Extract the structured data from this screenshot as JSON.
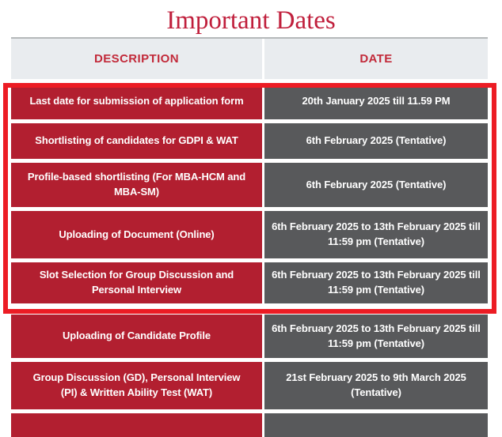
{
  "title": "Important Dates",
  "colors": {
    "title_red": "#c01f3c",
    "header_bg": "#e9ecef",
    "header_text": "#c22a3a",
    "description_cell_red": "#b21f30",
    "date_cell_gray": "#58595b",
    "cell_text": "#ffffff",
    "highlight_box_red": "#ec1c24"
  },
  "table": {
    "headers": [
      "DESCRIPTION",
      "DATE"
    ],
    "rows": [
      {
        "description": "Last date for submission of application form",
        "date": "20th January 2025 till 11.59 PM"
      },
      {
        "description": "Shortlisting of candidates for GDPI & WAT",
        "date": "6th February 2025 (Tentative)"
      },
      {
        "description": "Profile-based shortlisting (For MBA-HCM and MBA-SM)",
        "date": "6th February 2025 (Tentative)"
      },
      {
        "description": "Uploading of Document (Online)",
        "date": "6th February 2025 to 13th February 2025 till 11:59 pm (Tentative)"
      },
      {
        "description": "Slot Selection for Group Discussion and Personal Interview",
        "date": "6th February 2025 to 13th February 2025 till 11:59 pm (Tentative)"
      },
      {
        "description": "Uploading of Candidate Profile",
        "date": "6th February 2025 to 13th February 2025 till 11:59 pm (Tentative)"
      },
      {
        "description": "Group Discussion (GD), Personal Interview (PI) & Written Ability Test (WAT)",
        "date": "21st February 2025 to 9th March 2025 (Tentative)"
      }
    ]
  }
}
